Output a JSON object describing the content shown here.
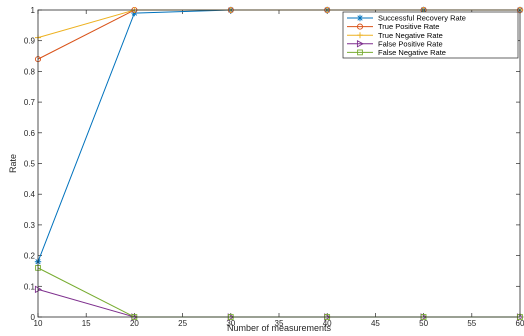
{
  "chart_data": {
    "type": "line",
    "title": "",
    "xlabel": "Number of measurements",
    "ylabel": "Rate",
    "xlim": [
      10,
      60
    ],
    "ylim": [
      0,
      1
    ],
    "xticks": [
      10,
      15,
      20,
      25,
      30,
      35,
      40,
      45,
      50,
      55,
      60
    ],
    "xtick_labels": [
      "10",
      "15",
      "20",
      "25",
      "30",
      "35",
      "40",
      "45",
      "50",
      "55",
      "60"
    ],
    "yticks": [
      0,
      0.1,
      0.2,
      0.3,
      0.4,
      0.5,
      0.6,
      0.7,
      0.8,
      0.9,
      1
    ],
    "ytick_labels": [
      "0",
      "0.1",
      "0.2",
      "0.3",
      "0.4",
      "0.5",
      "0.6",
      "0.7",
      "0.8",
      "0.9",
      "1"
    ],
    "grid": false,
    "legend_position": "top-right",
    "x": [
      10,
      20,
      30,
      40,
      50,
      60
    ],
    "series": [
      {
        "name": "Successful Recovery Rate",
        "color": "#0072bd",
        "marker": "star",
        "values": [
          0.18,
          0.99,
          1,
          1,
          1,
          1
        ]
      },
      {
        "name": "True Positive Rate",
        "color": "#d95319",
        "marker": "circle",
        "values": [
          0.84,
          1,
          1,
          1,
          1,
          1
        ]
      },
      {
        "name": "True Negative Rate",
        "color": "#edb120",
        "marker": "plus",
        "values": [
          0.91,
          1,
          1,
          1,
          1,
          1
        ]
      },
      {
        "name": "False Positive Rate",
        "color": "#7e2f8e",
        "marker": "triangle-right",
        "values": [
          0.09,
          0,
          0,
          0,
          0,
          0
        ]
      },
      {
        "name": "False Negative Rate",
        "color": "#77ac30",
        "marker": "square",
        "values": [
          0.16,
          0,
          0,
          0,
          0,
          0
        ]
      }
    ]
  }
}
